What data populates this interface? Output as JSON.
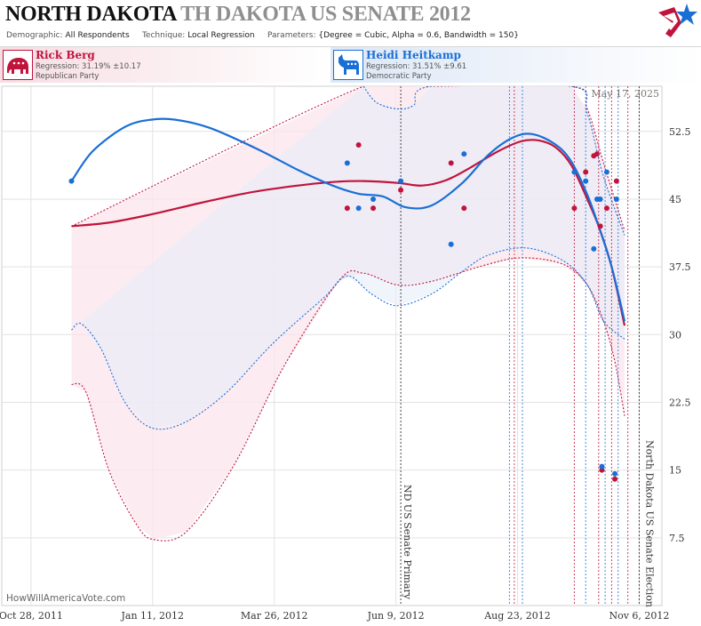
{
  "header": {
    "title_main": "NORTH DAKOTA",
    "title_sub": "TH DAKOTA US SENATE 2012",
    "demographic_label": "Demographic:",
    "demographic_value": "All Respondents",
    "technique_label": "Technique:",
    "technique_value": "Local Regression",
    "parameters_label": "Parameters:",
    "parameters_value": "{Degree = Cubic, Alpha = 0.6, Bandwidth = 150}",
    "logo_icon": "flag-star-icon"
  },
  "candidates": [
    {
      "name": "Rick Berg",
      "regression": "Regression: 31.19% ±10.17",
      "party": "Republican Party",
      "icon": "elephant-icon",
      "color": "#c0143c"
    },
    {
      "name": "Heidi Heitkamp",
      "regression": "Regression: 31.51% ±9.61",
      "party": "Democratic Party",
      "icon": "donkey-icon",
      "color": "#1a6fd6"
    }
  ],
  "chart_data": {
    "type": "line",
    "date_label": "May 17, 2025",
    "watermark": "HowWillAmericaVote.com",
    "ylim": [
      0,
      57.5
    ],
    "yticks": [
      7.5,
      15,
      22.5,
      30,
      37.5,
      45,
      52.5
    ],
    "xlim": [
      "2011-10-10",
      "2012-11-20"
    ],
    "xticks": [
      {
        "date": "2011-10-28",
        "label": "Oct 28, 2011"
      },
      {
        "date": "2012-01-11",
        "label": "Jan 11, 2012"
      },
      {
        "date": "2012-03-26",
        "label": "Mar 26, 2012"
      },
      {
        "date": "2012-06-09",
        "label": "Jun 9, 2012"
      },
      {
        "date": "2012-08-23",
        "label": "Aug 23, 2012"
      },
      {
        "date": "2012-11-06",
        "label": "Nov 6, 2012"
      }
    ],
    "events": [
      {
        "date": "2012-06-12",
        "label": "ND US Senate Primary"
      },
      {
        "date": "2012-11-06",
        "label": "North Dakota US Senate Election"
      }
    ],
    "poll_dates": [
      "2012-08-18",
      "2012-08-21",
      "2012-08-26",
      "2012-09-27",
      "2012-10-04",
      "2012-10-12",
      "2012-10-16",
      "2012-10-20",
      "2012-10-24",
      "2012-10-30"
    ],
    "series": [
      {
        "name": "Rick Berg",
        "color": "#c0143c",
        "line": [
          [
            "2011-11-22",
            42
          ],
          [
            "2011-12-15",
            42.4
          ],
          [
            "2012-01-10",
            43.3
          ],
          [
            "2012-02-10",
            44.6
          ],
          [
            "2012-03-10",
            45.7
          ],
          [
            "2012-04-05",
            46.4
          ],
          [
            "2012-05-01",
            46.9
          ],
          [
            "2012-05-20",
            47.0
          ],
          [
            "2012-06-10",
            46.8
          ],
          [
            "2012-06-25",
            46.5
          ],
          [
            "2012-07-10",
            47.1
          ],
          [
            "2012-07-25",
            48.5
          ],
          [
            "2012-08-10",
            50.2
          ],
          [
            "2012-08-25",
            51.4
          ],
          [
            "2012-09-05",
            51.5
          ],
          [
            "2012-09-15",
            50.8
          ],
          [
            "2012-09-25",
            48.8
          ],
          [
            "2012-10-05",
            45.0
          ],
          [
            "2012-10-12",
            42.0
          ],
          [
            "2012-10-20",
            37.5
          ],
          [
            "2012-10-28",
            31.0
          ]
        ],
        "upper": [
          [
            "2011-11-22",
            42
          ],
          [
            "2012-05-20",
            57.5
          ],
          [
            "2012-07-01",
            57.5
          ],
          [
            "2012-09-25",
            57.5
          ],
          [
            "2012-10-05",
            55
          ],
          [
            "2012-10-15",
            49
          ],
          [
            "2012-10-28",
            41.5
          ]
        ],
        "lower": [
          [
            "2011-11-22",
            24.5
          ],
          [
            "2011-12-01",
            23.6
          ],
          [
            "2011-12-15",
            15
          ],
          [
            "2012-01-01",
            9
          ],
          [
            "2012-01-12",
            7.3
          ],
          [
            "2012-02-01",
            8.2
          ],
          [
            "2012-03-01",
            15.5
          ],
          [
            "2012-04-01",
            26.5
          ],
          [
            "2012-05-05",
            36.0
          ],
          [
            "2012-05-20",
            36.8
          ],
          [
            "2012-06-10",
            35.5
          ],
          [
            "2012-07-01",
            35.9
          ],
          [
            "2012-08-01",
            37.6
          ],
          [
            "2012-08-25",
            38.5
          ],
          [
            "2012-09-20",
            37.8
          ],
          [
            "2012-10-05",
            35.5
          ],
          [
            "2012-10-15",
            31.5
          ],
          [
            "2012-10-22",
            27
          ],
          [
            "2012-10-28",
            21.0
          ]
        ],
        "points": [
          [
            "2012-05-10",
            44
          ],
          [
            "2012-05-17",
            51
          ],
          [
            "2012-05-26",
            44
          ],
          [
            "2012-06-12",
            46
          ],
          [
            "2012-07-13",
            49
          ],
          [
            "2012-07-21",
            44
          ],
          [
            "2012-09-27",
            44
          ],
          [
            "2012-10-04",
            48
          ],
          [
            "2012-10-09",
            49.8
          ],
          [
            "2012-10-11",
            50
          ],
          [
            "2012-10-13",
            42
          ],
          [
            "2012-10-17",
            44
          ],
          [
            "2012-10-23",
            47
          ],
          [
            "2012-10-14",
            15
          ],
          [
            "2012-10-22",
            14
          ]
        ]
      },
      {
        "name": "Heidi Heitkamp",
        "color": "#1a6fd6",
        "line": [
          [
            "2011-11-22",
            47
          ],
          [
            "2011-12-05",
            50.3
          ],
          [
            "2011-12-25",
            53.0
          ],
          [
            "2012-01-10",
            53.8
          ],
          [
            "2012-01-25",
            53.8
          ],
          [
            "2012-02-15",
            52.9
          ],
          [
            "2012-03-15",
            50.6
          ],
          [
            "2012-04-10",
            48.2
          ],
          [
            "2012-05-01",
            46.5
          ],
          [
            "2012-05-17",
            45.6
          ],
          [
            "2012-06-01",
            45.3
          ],
          [
            "2012-06-15",
            44.1
          ],
          [
            "2012-07-01",
            44.3
          ],
          [
            "2012-07-20",
            46.8
          ],
          [
            "2012-08-05",
            49.9
          ],
          [
            "2012-08-20",
            51.8
          ],
          [
            "2012-09-01",
            52.2
          ],
          [
            "2012-09-15",
            51.1
          ],
          [
            "2012-09-25",
            49.2
          ],
          [
            "2012-10-05",
            45.5
          ],
          [
            "2012-10-12",
            42.0
          ],
          [
            "2012-10-20",
            37.5
          ],
          [
            "2012-10-28",
            31.5
          ]
        ],
        "upper": [
          [
            "2012-05-20",
            57.5
          ],
          [
            "2012-05-28",
            55.7
          ],
          [
            "2012-06-10",
            55.0
          ],
          [
            "2012-06-20",
            55.4
          ],
          [
            "2012-07-01",
            57.5
          ],
          [
            "2012-09-25",
            57.5
          ],
          [
            "2012-10-05",
            54.5
          ],
          [
            "2012-10-15",
            47.5
          ],
          [
            "2012-10-28",
            41.0
          ]
        ],
        "lower": [
          [
            "2011-11-22",
            30.5
          ],
          [
            "2011-11-28",
            31.2
          ],
          [
            "2011-12-10",
            28.5
          ],
          [
            "2011-12-25",
            22.5
          ],
          [
            "2012-01-10",
            19.7
          ],
          [
            "2012-01-30",
            20.2
          ],
          [
            "2012-02-25",
            23.5
          ],
          [
            "2012-03-25",
            29.0
          ],
          [
            "2012-04-25",
            34.0
          ],
          [
            "2012-05-10",
            36.5
          ],
          [
            "2012-05-25",
            34.5
          ],
          [
            "2012-06-10",
            33.2
          ],
          [
            "2012-07-01",
            34.5
          ],
          [
            "2012-07-20",
            37.0
          ],
          [
            "2012-08-05",
            38.8
          ],
          [
            "2012-08-28",
            39.6
          ],
          [
            "2012-09-20",
            38.2
          ],
          [
            "2012-10-05",
            35.5
          ],
          [
            "2012-10-15",
            31.5
          ],
          [
            "2012-10-28",
            29.5
          ]
        ],
        "points": [
          [
            "2011-11-22",
            47
          ],
          [
            "2012-05-10",
            49
          ],
          [
            "2012-05-17",
            44
          ],
          [
            "2012-05-26",
            45
          ],
          [
            "2012-06-12",
            47
          ],
          [
            "2012-07-13",
            40
          ],
          [
            "2012-07-21",
            50
          ],
          [
            "2012-09-27",
            48
          ],
          [
            "2012-10-04",
            47
          ],
          [
            "2012-10-09",
            39.5
          ],
          [
            "2012-10-11",
            45
          ],
          [
            "2012-10-13",
            45
          ],
          [
            "2012-10-17",
            48
          ],
          [
            "2012-10-23",
            45
          ],
          [
            "2012-10-14",
            15.4
          ],
          [
            "2012-10-22",
            14.6
          ]
        ]
      }
    ]
  }
}
